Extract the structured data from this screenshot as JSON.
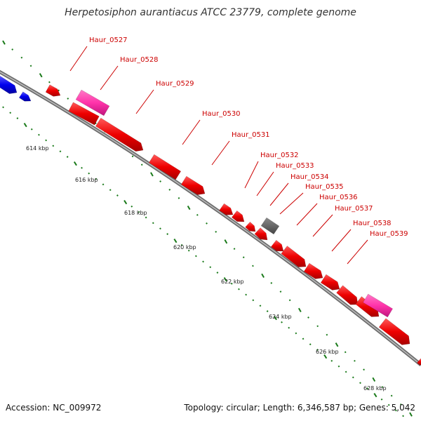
{
  "title": "Herpetosiphon aurantiacus ATCC 23779, complete genome",
  "footer": {
    "accession": "Accession: NC_009972",
    "summary": "Topology: circular; Length: 6,346,587 bp; Genes: 5,042"
  },
  "colors": {
    "backbone": "#7a7a7a",
    "forward_gene": "#ff0000",
    "reverse_gene": "#0000ee",
    "rrna_gene": "#ff33aa",
    "other_gene": "#666666",
    "tick": "#1a7a1a",
    "label": "#cc0000"
  },
  "scale_labels": [
    "614 kbp",
    "616 kbp",
    "618 kbp",
    "620 kbp",
    "622 kbp",
    "624 kbp",
    "626 kbp",
    "628 kbp"
  ],
  "gene_labels": [
    "Haur_0527",
    "Haur_0528",
    "Haur_0529",
    "Haur_0530",
    "Haur_0531",
    "Haur_0532",
    "Haur_0533",
    "Haur_0534",
    "Haur_0535",
    "Haur_0536",
    "Haur_0537",
    "Haur_0538",
    "Haur_0539"
  ]
}
